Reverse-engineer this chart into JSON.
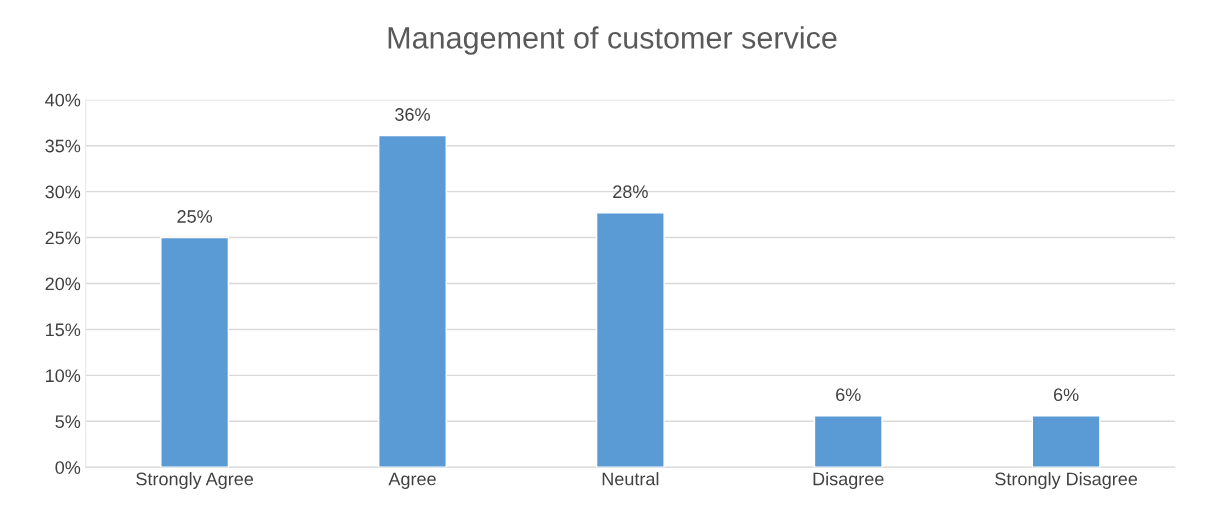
{
  "chart_data": {
    "type": "bar",
    "title": "Management of customer service",
    "categories": [
      "Strongly Agree",
      "Agree",
      "Neutral",
      "Disagree",
      "Strongly Disagree"
    ],
    "values": [
      25,
      36.1,
      27.7,
      5.6,
      5.6
    ],
    "value_labels": [
      "25%",
      "36%",
      "28%",
      "6%",
      "6%"
    ],
    "color": "#5b9bd5",
    "ylim": [
      0,
      40
    ],
    "yticks": [
      {
        "value": 0,
        "label": "0%"
      },
      {
        "value": 5,
        "label": "5%"
      },
      {
        "value": 10,
        "label": "10%"
      },
      {
        "value": 15,
        "label": "15%"
      },
      {
        "value": 20,
        "label": "20%"
      },
      {
        "value": 25,
        "label": "25%"
      },
      {
        "value": 30,
        "label": "30%"
      },
      {
        "value": 35,
        "label": "35%"
      },
      {
        "value": 40,
        "label": "40%"
      }
    ],
    "grid": "y"
  }
}
